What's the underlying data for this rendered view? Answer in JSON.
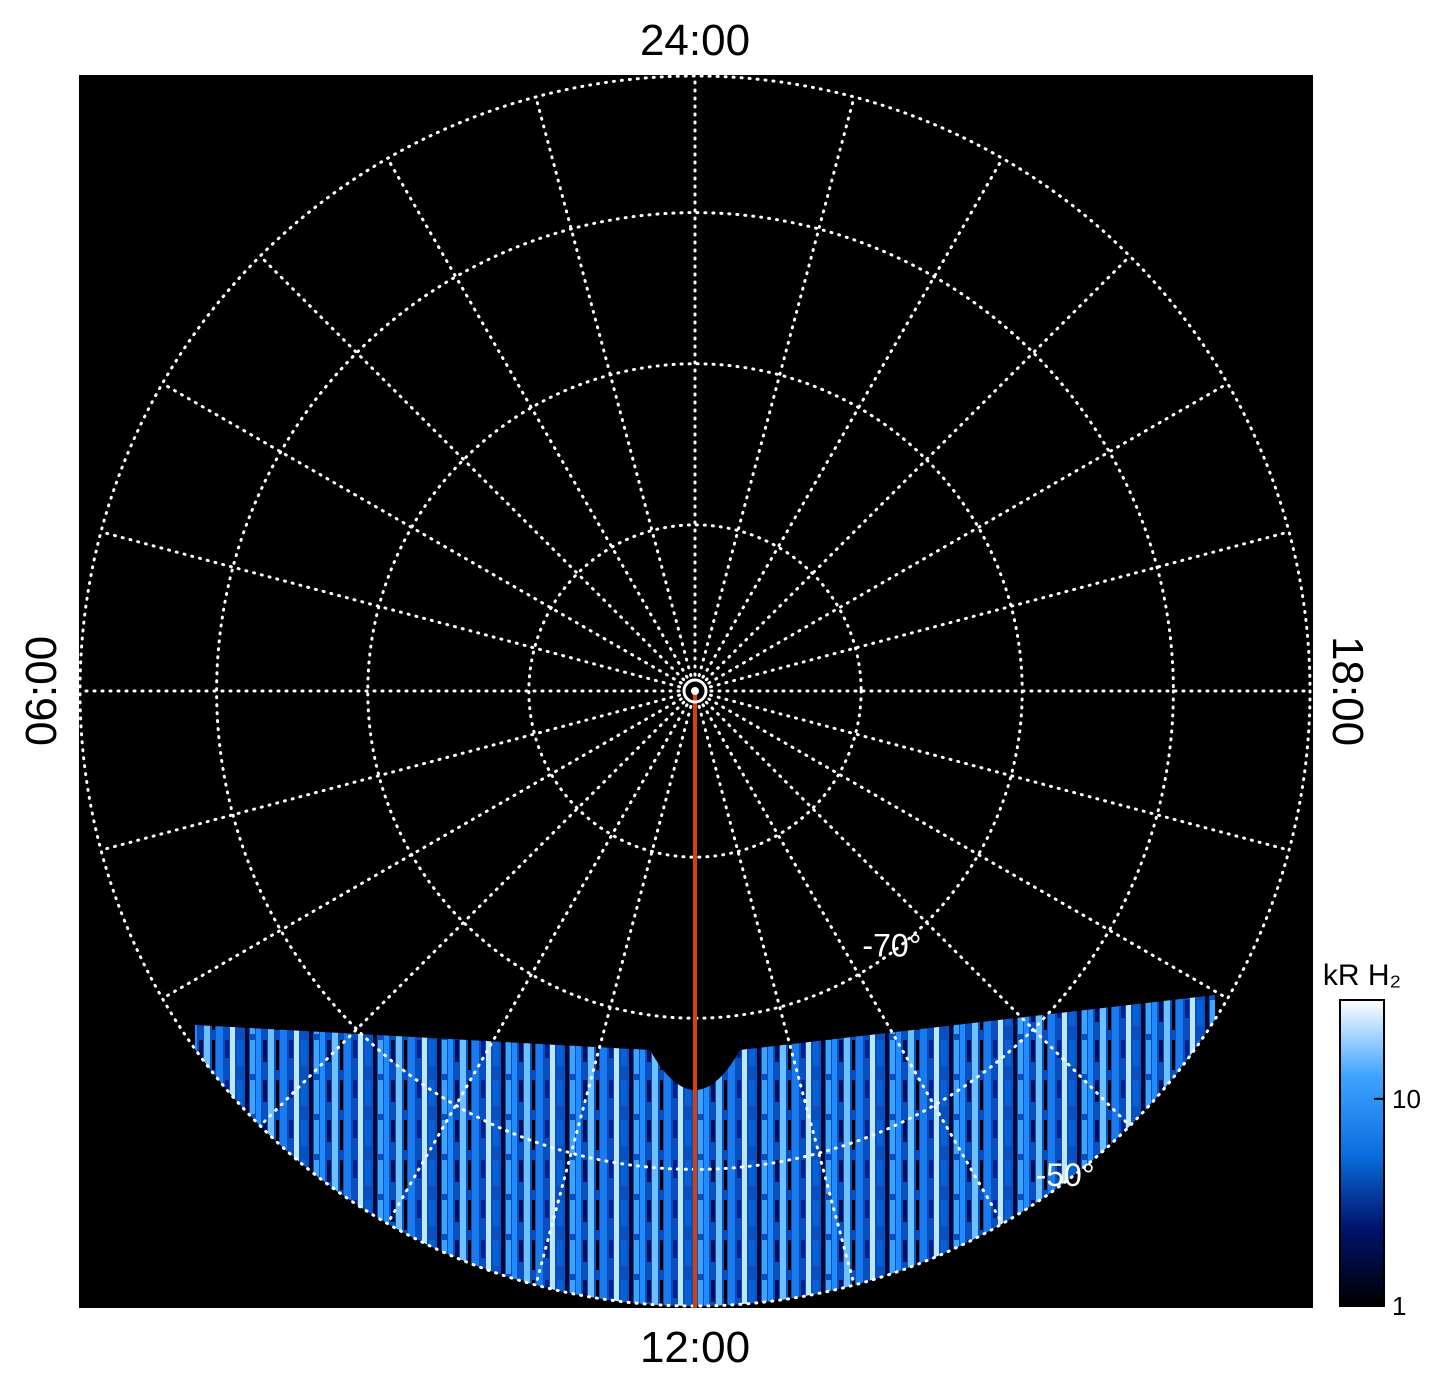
{
  "chart_data": {
    "type": "polar-image",
    "local_time_labels": {
      "top": "24:00",
      "left": "06:00",
      "bottom": "12:00",
      "right": "18:00"
    },
    "lat_rings": [
      -80,
      -70,
      -60,
      -50
    ],
    "rlim": [
      -90,
      -50
    ],
    "meridian_step_deg": 15,
    "ring_labels": [
      {
        "value": -70,
        "label": "-70°"
      },
      {
        "value": -50,
        "label": "-50°"
      }
    ],
    "grid": true,
    "colorbar": {
      "label": "kR H₂",
      "log": true,
      "clim": [
        1,
        30
      ],
      "ticks": [
        1,
        10
      ],
      "colors": [
        "#000000",
        "#00126b",
        "#0a6fe0",
        "#3ea3ff",
        "#ffffff"
      ]
    }
  }
}
